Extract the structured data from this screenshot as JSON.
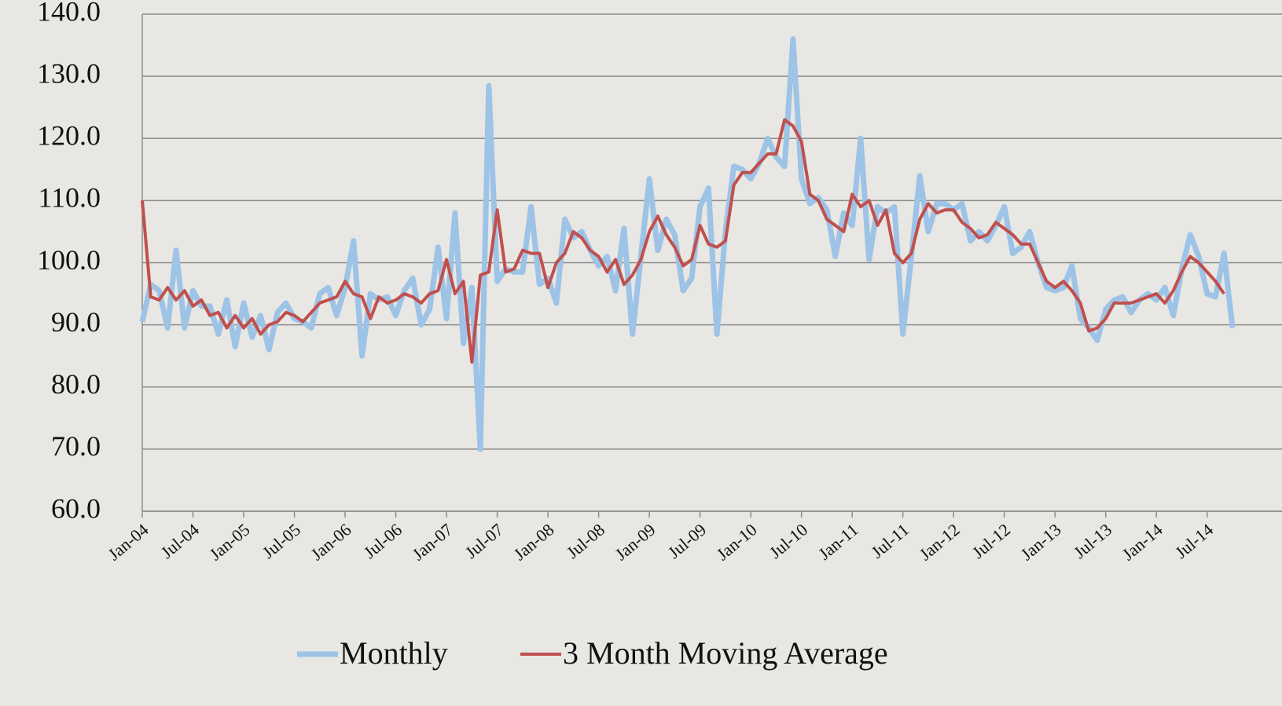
{
  "chart_data": {
    "type": "line",
    "categories": [
      "Jan-04",
      null,
      null,
      null,
      null,
      null,
      "Jul-04",
      null,
      null,
      null,
      null,
      null,
      "Jan-05",
      null,
      null,
      null,
      null,
      null,
      "Jul-05",
      null,
      null,
      null,
      null,
      null,
      "Jan-06",
      null,
      null,
      null,
      null,
      null,
      "Jul-06",
      null,
      null,
      null,
      null,
      null,
      "Jan-07",
      null,
      null,
      null,
      null,
      null,
      "Jul-07",
      null,
      null,
      null,
      null,
      null,
      "Jan-08",
      null,
      null,
      null,
      null,
      null,
      "Jul-08",
      null,
      null,
      null,
      null,
      null,
      "Jan-09",
      null,
      null,
      null,
      null,
      null,
      "Jul-09",
      null,
      null,
      null,
      null,
      null,
      "Jan-10",
      null,
      null,
      null,
      null,
      null,
      "Jul-10",
      null,
      null,
      null,
      null,
      null,
      "Jan-11",
      null,
      null,
      null,
      null,
      null,
      "Jul-11",
      null,
      null,
      null,
      null,
      null,
      "Jan-12",
      null,
      null,
      null,
      null,
      null,
      "Jul-12",
      null,
      null,
      null,
      null,
      null,
      "Jan-13",
      null,
      null,
      null,
      null,
      null,
      "Jul-13",
      null,
      null,
      null,
      null,
      null,
      "Jan-14",
      null,
      null,
      null,
      null,
      null,
      "Jul-14",
      null,
      null,
      null
    ],
    "series": [
      {
        "name": "Monthly",
        "color": "#9dc3e6",
        "values": [
          90.5,
          96.5,
          95.5,
          89.5,
          102,
          89.5,
          95.5,
          93,
          93,
          88.5,
          94,
          86.5,
          93.5,
          88,
          91.5,
          86,
          92,
          93.5,
          91,
          90.5,
          89.5,
          95,
          96,
          91.5,
          96,
          103.5,
          85,
          95,
          94,
          94.5,
          91.5,
          95.5,
          97.5,
          90,
          92.5,
          102.5,
          91,
          108,
          87,
          96,
          70,
          128.5,
          97,
          99,
          98.5,
          98.5,
          109,
          96.5,
          97.5,
          93.5,
          107,
          104,
          105,
          102,
          99.5,
          101,
          95.5,
          105.5,
          88.5,
          101,
          113.5,
          102,
          107,
          104.5,
          95.5,
          97.5,
          109,
          112,
          88.5,
          105,
          115.5,
          115,
          113.5,
          116,
          120,
          117,
          115.5,
          136,
          113.5,
          109.5,
          110.5,
          108.5,
          101,
          108,
          106,
          120,
          100.5,
          109,
          108,
          109,
          88.5,
          101,
          114,
          105,
          109.5,
          109.5,
          108.5,
          109.5,
          103.5,
          105,
          103.5,
          106,
          109,
          101.5,
          102.5,
          105,
          100,
          96,
          95.5,
          96,
          99.5,
          91,
          89.5,
          87.5,
          92.5,
          94,
          94.5,
          92,
          94,
          95,
          94,
          96,
          91.5,
          99,
          104.5,
          101,
          95,
          94.5,
          101.5,
          89.5
        ]
      },
      {
        "name": "3 Month Moving Average",
        "color": "#c0504d",
        "values": [
          110,
          94.5,
          94,
          96,
          94,
          95.5,
          93,
          94,
          91.5,
          92,
          89.5,
          91.5,
          89.5,
          91,
          88.5,
          90,
          90.5,
          92,
          91.5,
          90.5,
          92,
          93.5,
          94,
          94.5,
          97,
          95,
          94.5,
          91,
          94.5,
          93.5,
          94,
          95,
          94.5,
          93.5,
          95,
          95.5,
          100.5,
          95,
          97,
          84,
          98,
          98.5,
          108.5,
          98.5,
          99,
          102,
          101.5,
          101.5,
          96,
          100,
          101.5,
          105,
          104,
          102,
          101,
          98.5,
          100.5,
          96.5,
          98,
          100.5,
          105,
          107.5,
          104.5,
          102.5,
          99.5,
          100.5,
          106,
          103,
          102.5,
          103.5,
          112.5,
          114.5,
          114.5,
          116,
          117.5,
          117.5,
          123,
          122,
          119.5,
          111,
          110,
          107,
          106,
          105,
          111,
          109,
          110,
          106,
          108.5,
          101.5,
          100,
          101.5,
          107,
          109.5,
          108,
          108.5,
          108.5,
          106.5,
          105.5,
          104,
          104.5,
          106.5,
          105.5,
          104.5,
          103,
          103,
          100,
          97,
          96,
          97,
          95.5,
          93.5,
          89,
          89.5,
          91,
          93.5,
          93.5,
          93.5,
          94,
          94.5,
          95,
          93.5,
          95.5,
          98.5,
          101,
          100,
          98.5,
          97,
          95,
          null
        ]
      }
    ],
    "ylim": [
      60,
      140
    ],
    "yticks": [
      {
        "value": 60,
        "label": "60.0"
      },
      {
        "value": 70,
        "label": "70.0"
      },
      {
        "value": 80,
        "label": "80.0"
      },
      {
        "value": 90,
        "label": "90.0"
      },
      {
        "value": 100,
        "label": "100.0"
      },
      {
        "value": 110,
        "label": "110.0"
      },
      {
        "value": 120,
        "label": "120.0"
      },
      {
        "value": 130,
        "label": "130.0"
      },
      {
        "value": 140,
        "label": "140.0"
      }
    ],
    "grid": true,
    "legend": "bottom"
  }
}
